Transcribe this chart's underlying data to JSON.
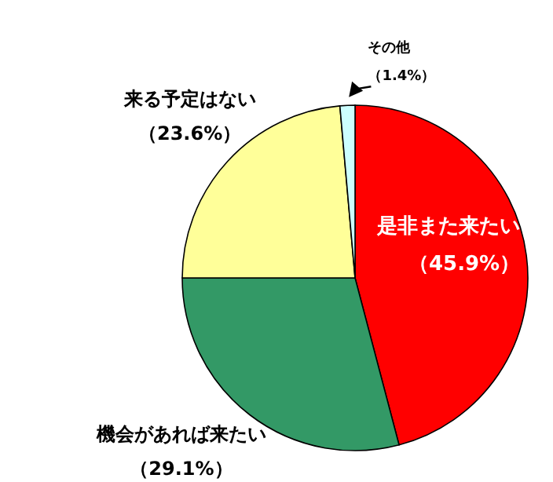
{
  "chart_data": {
    "type": "pie",
    "categories": [
      "是非また来たい",
      "機会があれば来たい",
      "来る予定はない",
      "その他"
    ],
    "values": [
      45.9,
      29.1,
      23.6,
      1.4
    ],
    "colors": [
      "#ff0000",
      "#339966",
      "#ffff99",
      "#ccffff"
    ],
    "value_labels": [
      "（45.9%）",
      "（29.1%）",
      "（23.6%）",
      "（1.4%）"
    ]
  }
}
